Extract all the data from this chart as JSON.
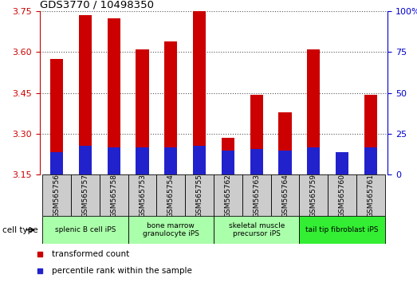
{
  "title": "GDS3770 / 10498350",
  "samples": [
    "GSM565756",
    "GSM565757",
    "GSM565758",
    "GSM565753",
    "GSM565754",
    "GSM565755",
    "GSM565762",
    "GSM565763",
    "GSM565764",
    "GSM565759",
    "GSM565760",
    "GSM565761"
  ],
  "transformed_count": [
    3.575,
    3.735,
    3.725,
    3.61,
    3.64,
    3.75,
    3.285,
    3.445,
    3.38,
    3.61,
    3.215,
    3.445
  ],
  "percentile_rank": [
    14,
    18,
    17,
    17,
    17,
    18,
    15,
    16,
    15,
    17,
    14,
    17
  ],
  "ylim_left": [
    3.15,
    3.75
  ],
  "ylim_right": [
    0,
    100
  ],
  "yticks_left": [
    3.15,
    3.3,
    3.45,
    3.6,
    3.75
  ],
  "yticks_right": [
    0,
    25,
    50,
    75,
    100
  ],
  "bar_color_red": "#cc0000",
  "bar_color_blue": "#2222cc",
  "cell_type_groups": [
    {
      "label": "splenic B cell iPS",
      "start": 0,
      "end": 2,
      "color": "#aaffaa"
    },
    {
      "label": "bone marrow\ngranulocyte iPS",
      "start": 3,
      "end": 5,
      "color": "#aaffaa"
    },
    {
      "label": "skeletal muscle\nprecursor iPS",
      "start": 6,
      "end": 8,
      "color": "#aaffaa"
    },
    {
      "label": "tail tip fibroblast iPS",
      "start": 9,
      "end": 11,
      "color": "#33ee33"
    }
  ],
  "legend_red": "transformed count",
  "legend_blue": "percentile rank within the sample",
  "cell_type_label": "cell type",
  "bar_width": 0.45,
  "grid_color": "#555555",
  "bg_color": "#ffffff",
  "axis_color_left": "#cc0000",
  "axis_color_right": "#0000cc",
  "tick_label_bg": "#cccccc",
  "xtick_fontsize": 6.5,
  "ytick_fontsize": 8
}
